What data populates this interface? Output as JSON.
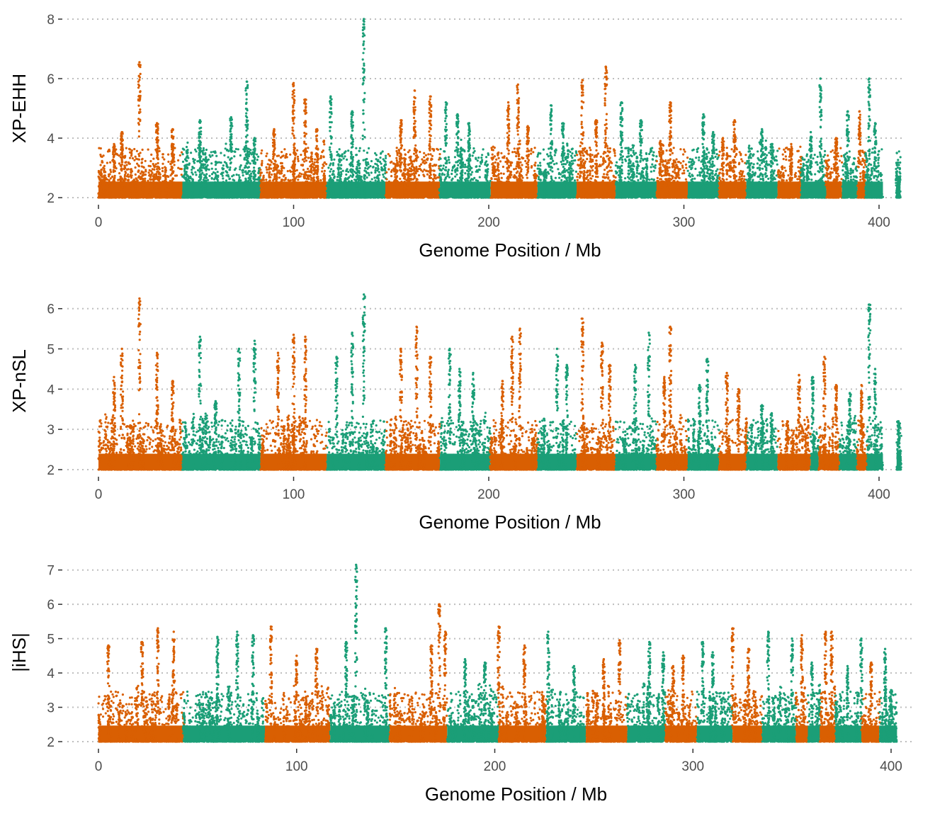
{
  "colors": {
    "orange": "#D95F02",
    "green": "#1B9E77"
  },
  "chart_data": [
    {
      "type": "scatter",
      "ylabel": "XP-EHH",
      "xlabel": "Genome Position / Mb",
      "xlim": [
        -5,
        412
      ],
      "ylim": [
        2,
        8
      ],
      "yticks": [
        2,
        4,
        6,
        8
      ],
      "xticks": [
        0,
        100,
        200,
        300,
        400
      ],
      "chromosomes": [
        {
          "start": 0,
          "end": 43,
          "color": "orange",
          "peaks": [
            [
              21,
              6.55
            ],
            [
              12,
              4.2
            ],
            [
              30,
              4.5
            ],
            [
              8,
              3.8
            ],
            [
              38,
              4.3
            ]
          ]
        },
        {
          "start": 43,
          "end": 83,
          "color": "green",
          "peaks": [
            [
              76,
              5.9
            ],
            [
              52,
              4.6
            ],
            [
              68,
              4.7
            ],
            [
              80,
              4.0
            ]
          ]
        },
        {
          "start": 83,
          "end": 117,
          "color": "orange",
          "peaks": [
            [
              100,
              5.85
            ],
            [
              106,
              5.3
            ],
            [
              90,
              4.3
            ],
            [
              112,
              4.3
            ]
          ]
        },
        {
          "start": 117,
          "end": 147,
          "color": "green",
          "peaks": [
            [
              136,
              8.0
            ],
            [
              119,
              5.4
            ],
            [
              130,
              4.9
            ]
          ]
        },
        {
          "start": 147,
          "end": 175,
          "color": "orange",
          "peaks": [
            [
              162,
              5.6
            ],
            [
              170,
              5.4
            ],
            [
              155,
              4.6
            ]
          ]
        },
        {
          "start": 175,
          "end": 201,
          "color": "green",
          "peaks": [
            [
              178,
              5.2
            ],
            [
              184,
              4.8
            ],
            [
              190,
              4.5
            ]
          ]
        },
        {
          "start": 201,
          "end": 225,
          "color": "orange",
          "peaks": [
            [
              210,
              5.2
            ],
            [
              215,
              5.8
            ],
            [
              220,
              4.4
            ]
          ]
        },
        {
          "start": 225,
          "end": 245,
          "color": "green",
          "peaks": [
            [
              232,
              5.1
            ],
            [
              238,
              4.5
            ]
          ]
        },
        {
          "start": 245,
          "end": 265,
          "color": "orange",
          "peaks": [
            [
              248,
              5.95
            ],
            [
              260,
              6.4
            ],
            [
              255,
              4.6
            ]
          ]
        },
        {
          "start": 265,
          "end": 286,
          "color": "green",
          "peaks": [
            [
              268,
              5.2
            ],
            [
              278,
              4.6
            ]
          ]
        },
        {
          "start": 286,
          "end": 302,
          "color": "orange",
          "peaks": [
            [
              293,
              5.2
            ],
            [
              288,
              3.9
            ]
          ]
        },
        {
          "start": 302,
          "end": 318,
          "color": "green",
          "peaks": [
            [
              310,
              4.8
            ],
            [
              315,
              4.2
            ]
          ]
        },
        {
          "start": 318,
          "end": 332,
          "color": "orange",
          "peaks": [
            [
              326,
              4.6
            ],
            [
              320,
              4.0
            ]
          ]
        },
        {
          "start": 332,
          "end": 348,
          "color": "green",
          "peaks": [
            [
              340,
              4.3
            ],
            [
              345,
              3.8
            ]
          ]
        },
        {
          "start": 348,
          "end": 360,
          "color": "orange",
          "peaks": [
            [
              355,
              3.8
            ]
          ]
        },
        {
          "start": 360,
          "end": 373,
          "color": "green",
          "peaks": [
            [
              370,
              6.0
            ],
            [
              365,
              4.2
            ]
          ]
        },
        {
          "start": 373,
          "end": 381,
          "color": "orange",
          "peaks": [
            [
              378,
              4.0
            ]
          ]
        },
        {
          "start": 381,
          "end": 389,
          "color": "green",
          "peaks": [
            [
              384,
              4.9
            ]
          ]
        },
        {
          "start": 389,
          "end": 393,
          "color": "orange",
          "peaks": [
            [
              390,
              4.9
            ]
          ]
        },
        {
          "start": 393,
          "end": 402,
          "color": "green",
          "peaks": [
            [
              395,
              6.0
            ],
            [
              398,
              4.5
            ]
          ]
        },
        {
          "start": 409,
          "end": 411,
          "color": "green",
          "peaks": [
            [
              410,
              2.7
            ]
          ]
        }
      ]
    },
    {
      "type": "scatter",
      "ylabel": "XP-nSL",
      "xlabel": "Genome Position / Mb",
      "xlim": [
        -5,
        412
      ],
      "ylim": [
        2,
        6.4
      ],
      "yticks": [
        2,
        3,
        4,
        5,
        6
      ],
      "xticks": [
        0,
        100,
        200,
        300,
        400
      ],
      "chromosomes": [
        {
          "start": 0,
          "end": 43,
          "color": "orange",
          "peaks": [
            [
              21,
              6.25
            ],
            [
              12,
              5.0
            ],
            [
              30,
              4.9
            ],
            [
              8,
              4.3
            ],
            [
              38,
              4.2
            ]
          ]
        },
        {
          "start": 43,
          "end": 83,
          "color": "green",
          "peaks": [
            [
              52,
              5.3
            ],
            [
              72,
              5.0
            ],
            [
              80,
              5.2
            ],
            [
              60,
              3.7
            ]
          ]
        },
        {
          "start": 83,
          "end": 117,
          "color": "orange",
          "peaks": [
            [
              100,
              5.35
            ],
            [
              106,
              5.3
            ],
            [
              92,
              4.9
            ]
          ]
        },
        {
          "start": 117,
          "end": 147,
          "color": "green",
          "peaks": [
            [
              136,
              6.35
            ],
            [
              130,
              5.4
            ],
            [
              122,
              4.8
            ]
          ]
        },
        {
          "start": 147,
          "end": 175,
          "color": "orange",
          "peaks": [
            [
              163,
              5.55
            ],
            [
              155,
              5.0
            ],
            [
              170,
              4.8
            ]
          ]
        },
        {
          "start": 175,
          "end": 201,
          "color": "green",
          "peaks": [
            [
              180,
              5.0
            ],
            [
              185,
              4.5
            ],
            [
              192,
              4.4
            ]
          ]
        },
        {
          "start": 201,
          "end": 225,
          "color": "orange",
          "peaks": [
            [
              212,
              5.3
            ],
            [
              216,
              5.5
            ],
            [
              207,
              4.2
            ]
          ]
        },
        {
          "start": 225,
          "end": 245,
          "color": "green",
          "peaks": [
            [
              235,
              5.0
            ],
            [
              240,
              4.6
            ]
          ]
        },
        {
          "start": 245,
          "end": 265,
          "color": "orange",
          "peaks": [
            [
              248,
              5.75
            ],
            [
              258,
              5.15
            ],
            [
              262,
              4.6
            ]
          ]
        },
        {
          "start": 265,
          "end": 286,
          "color": "green",
          "peaks": [
            [
              282,
              5.4
            ],
            [
              275,
              4.6
            ]
          ]
        },
        {
          "start": 286,
          "end": 302,
          "color": "orange",
          "peaks": [
            [
              293,
              5.55
            ],
            [
              290,
              4.3
            ]
          ]
        },
        {
          "start": 302,
          "end": 318,
          "color": "green",
          "peaks": [
            [
              312,
              4.75
            ],
            [
              308,
              4.1
            ]
          ]
        },
        {
          "start": 318,
          "end": 332,
          "color": "orange",
          "peaks": [
            [
              322,
              4.4
            ],
            [
              328,
              4.0
            ]
          ]
        },
        {
          "start": 332,
          "end": 348,
          "color": "green",
          "peaks": [
            [
              340,
              3.6
            ],
            [
              345,
              3.4
            ]
          ]
        },
        {
          "start": 348,
          "end": 365,
          "color": "orange",
          "peaks": [
            [
              359,
              4.35
            ],
            [
              353,
              3.2
            ]
          ]
        },
        {
          "start": 365,
          "end": 369,
          "color": "green",
          "peaks": [
            [
              366,
              4.3
            ]
          ]
        },
        {
          "start": 369,
          "end": 380,
          "color": "orange",
          "peaks": [
            [
              372,
              4.8
            ],
            [
              378,
              4.1
            ]
          ]
        },
        {
          "start": 380,
          "end": 389,
          "color": "green",
          "peaks": [
            [
              385,
              3.9
            ]
          ]
        },
        {
          "start": 389,
          "end": 394,
          "color": "orange",
          "peaks": [
            [
              391,
              4.1
            ]
          ]
        },
        {
          "start": 394,
          "end": 402,
          "color": "green",
          "peaks": [
            [
              395,
              6.1
            ],
            [
              398,
              4.5
            ]
          ]
        },
        {
          "start": 409,
          "end": 411,
          "color": "green",
          "peaks": [
            [
              410,
              3.2
            ]
          ]
        }
      ]
    },
    {
      "type": "scatter",
      "ylabel": "|iHS|",
      "xlabel": "Genome Position / Mb",
      "xlim": [
        -5,
        412
      ],
      "ylim": [
        2,
        7.2
      ],
      "yticks": [
        2,
        3,
        4,
        5,
        6,
        7
      ],
      "xticks": [
        0,
        100,
        200,
        300,
        400
      ],
      "chromosomes": [
        {
          "start": 0,
          "end": 43,
          "color": "orange",
          "peaks": [
            [
              30,
              5.3
            ],
            [
              22,
              4.9
            ],
            [
              38,
              5.2
            ],
            [
              5,
              4.8
            ]
          ]
        },
        {
          "start": 43,
          "end": 84,
          "color": "green",
          "peaks": [
            [
              70,
              5.2
            ],
            [
              60,
              5.05
            ],
            [
              78,
              5.1
            ]
          ]
        },
        {
          "start": 84,
          "end": 117,
          "color": "orange",
          "peaks": [
            [
              87,
              5.35
            ],
            [
              110,
              4.7
            ],
            [
              100,
              4.5
            ]
          ]
        },
        {
          "start": 117,
          "end": 147,
          "color": "green",
          "peaks": [
            [
              130,
              7.15
            ],
            [
              145,
              5.3
            ],
            [
              125,
              4.9
            ]
          ]
        },
        {
          "start": 147,
          "end": 176,
          "color": "orange",
          "peaks": [
            [
              172,
              6.0
            ],
            [
              175,
              5.2
            ],
            [
              168,
              4.8
            ]
          ]
        },
        {
          "start": 176,
          "end": 202,
          "color": "green",
          "peaks": [
            [
              185,
              4.4
            ],
            [
              195,
              4.3
            ]
          ]
        },
        {
          "start": 202,
          "end": 226,
          "color": "orange",
          "peaks": [
            [
              202,
              5.35
            ],
            [
              215,
              4.8
            ]
          ]
        },
        {
          "start": 226,
          "end": 246,
          "color": "green",
          "peaks": [
            [
              227,
              5.2
            ],
            [
              240,
              4.2
            ]
          ]
        },
        {
          "start": 246,
          "end": 267,
          "color": "orange",
          "peaks": [
            [
              263,
              4.95
            ],
            [
              255,
              4.4
            ]
          ]
        },
        {
          "start": 267,
          "end": 286,
          "color": "green",
          "peaks": [
            [
              278,
              4.9
            ],
            [
              285,
              4.6
            ]
          ]
        },
        {
          "start": 286,
          "end": 302,
          "color": "orange",
          "peaks": [
            [
              295,
              4.5
            ],
            [
              290,
              4.2
            ]
          ]
        },
        {
          "start": 302,
          "end": 320,
          "color": "green",
          "peaks": [
            [
              310,
              4.6
            ],
            [
              305,
              4.9
            ]
          ]
        },
        {
          "start": 320,
          "end": 335,
          "color": "orange",
          "peaks": [
            [
              320,
              5.3
            ],
            [
              328,
              4.7
            ]
          ]
        },
        {
          "start": 335,
          "end": 352,
          "color": "green",
          "peaks": [
            [
              338,
              5.2
            ],
            [
              350,
              5.0
            ]
          ]
        },
        {
          "start": 352,
          "end": 358,
          "color": "orange",
          "peaks": [
            [
              355,
              5.1
            ]
          ]
        },
        {
          "start": 358,
          "end": 364,
          "color": "green",
          "peaks": [
            [
              360,
              4.3
            ]
          ]
        },
        {
          "start": 364,
          "end": 372,
          "color": "orange",
          "peaks": [
            [
              367,
              5.2
            ],
            [
              370,
              5.2
            ]
          ]
        },
        {
          "start": 372,
          "end": 385,
          "color": "green",
          "peaks": [
            [
              385,
              5.0
            ],
            [
              378,
              4.2
            ]
          ]
        },
        {
          "start": 385,
          "end": 394,
          "color": "orange",
          "peaks": [
            [
              390,
              4.3
            ]
          ]
        },
        {
          "start": 394,
          "end": 403,
          "color": "green",
          "peaks": [
            [
              397,
              4.7
            ],
            [
              400,
              3.5
            ]
          ]
        }
      ]
    }
  ]
}
